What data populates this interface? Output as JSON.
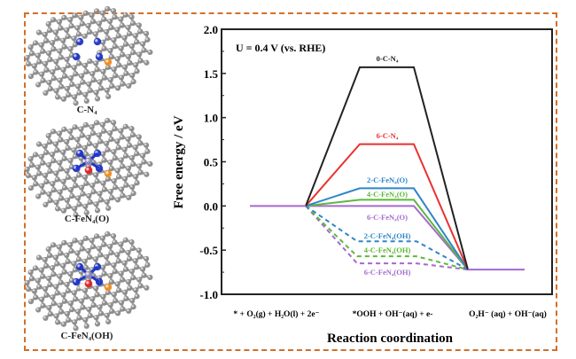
{
  "structures": [
    {
      "label": "C-N₄",
      "type": "CN4"
    },
    {
      "label": "C-FeN₄(O)",
      "type": "FeN4O"
    },
    {
      "label": "C-FeN₄(OH)",
      "type": "FeN4OH"
    }
  ],
  "atom_colors": {
    "carbon": "#8a8a8a",
    "nitrogen": "#1f35c8",
    "iron": "#8c86b8",
    "oxygen": "#e02020",
    "hydrogen": "#f0f0f0",
    "dopant": "#f08a1e"
  },
  "frame_color": "#d0702a",
  "chart_data": {
    "type": "line",
    "title": "",
    "annotation": "U = 0.4 V (vs. RHE)",
    "ylabel": "Free energy / eV",
    "xlabel": "Reaction coordination",
    "ylim": [
      -1.0,
      2.0
    ],
    "yticks": [
      "2.0",
      "1.5",
      "1.0",
      "0.5",
      "0.0",
      "-0.5",
      "-1.0"
    ],
    "ytick_values": [
      2.0,
      1.5,
      1.0,
      0.5,
      0.0,
      -0.5,
      -1.0
    ],
    "states": [
      "* + O₂(g) + H₂O(l) + 2e⁻",
      "*OOH + OH⁻(aq) + e-",
      "O₂H⁻ (aq) + OH⁻(aq)"
    ],
    "grid": false,
    "legend": "inline labels",
    "series": [
      {
        "name": "0-C-N₄",
        "color": "#222222",
        "dash": false,
        "values": [
          0.0,
          1.57,
          -0.72
        ]
      },
      {
        "name": "6-C-N₄",
        "color": "#e8322f",
        "dash": false,
        "values": [
          0.0,
          0.7,
          -0.72
        ]
      },
      {
        "name": "2-C-FeN₄(O)",
        "color": "#2e86c8",
        "dash": false,
        "values": [
          0.0,
          0.2,
          -0.72
        ]
      },
      {
        "name": "4-C-FeN₄(O)",
        "color": "#5cb83a",
        "dash": false,
        "values": [
          0.0,
          0.07,
          -0.72
        ]
      },
      {
        "name": "6-C-FeN₄(O)",
        "color": "#a46ad0",
        "dash": false,
        "values": [
          0.0,
          0.0,
          -0.72
        ]
      },
      {
        "name": "2-C-FeN₄(OH)",
        "color": "#2e86c8",
        "dash": true,
        "values": [
          0.0,
          -0.4,
          -0.72
        ]
      },
      {
        "name": "4-C-FeN₄(OH)",
        "color": "#5cb83a",
        "dash": true,
        "values": [
          0.0,
          -0.57,
          -0.72
        ]
      },
      {
        "name": "6-C-FeN₄(OH)",
        "color": "#a46ad0",
        "dash": true,
        "values": [
          0.0,
          -0.65,
          -0.72
        ]
      }
    ]
  }
}
